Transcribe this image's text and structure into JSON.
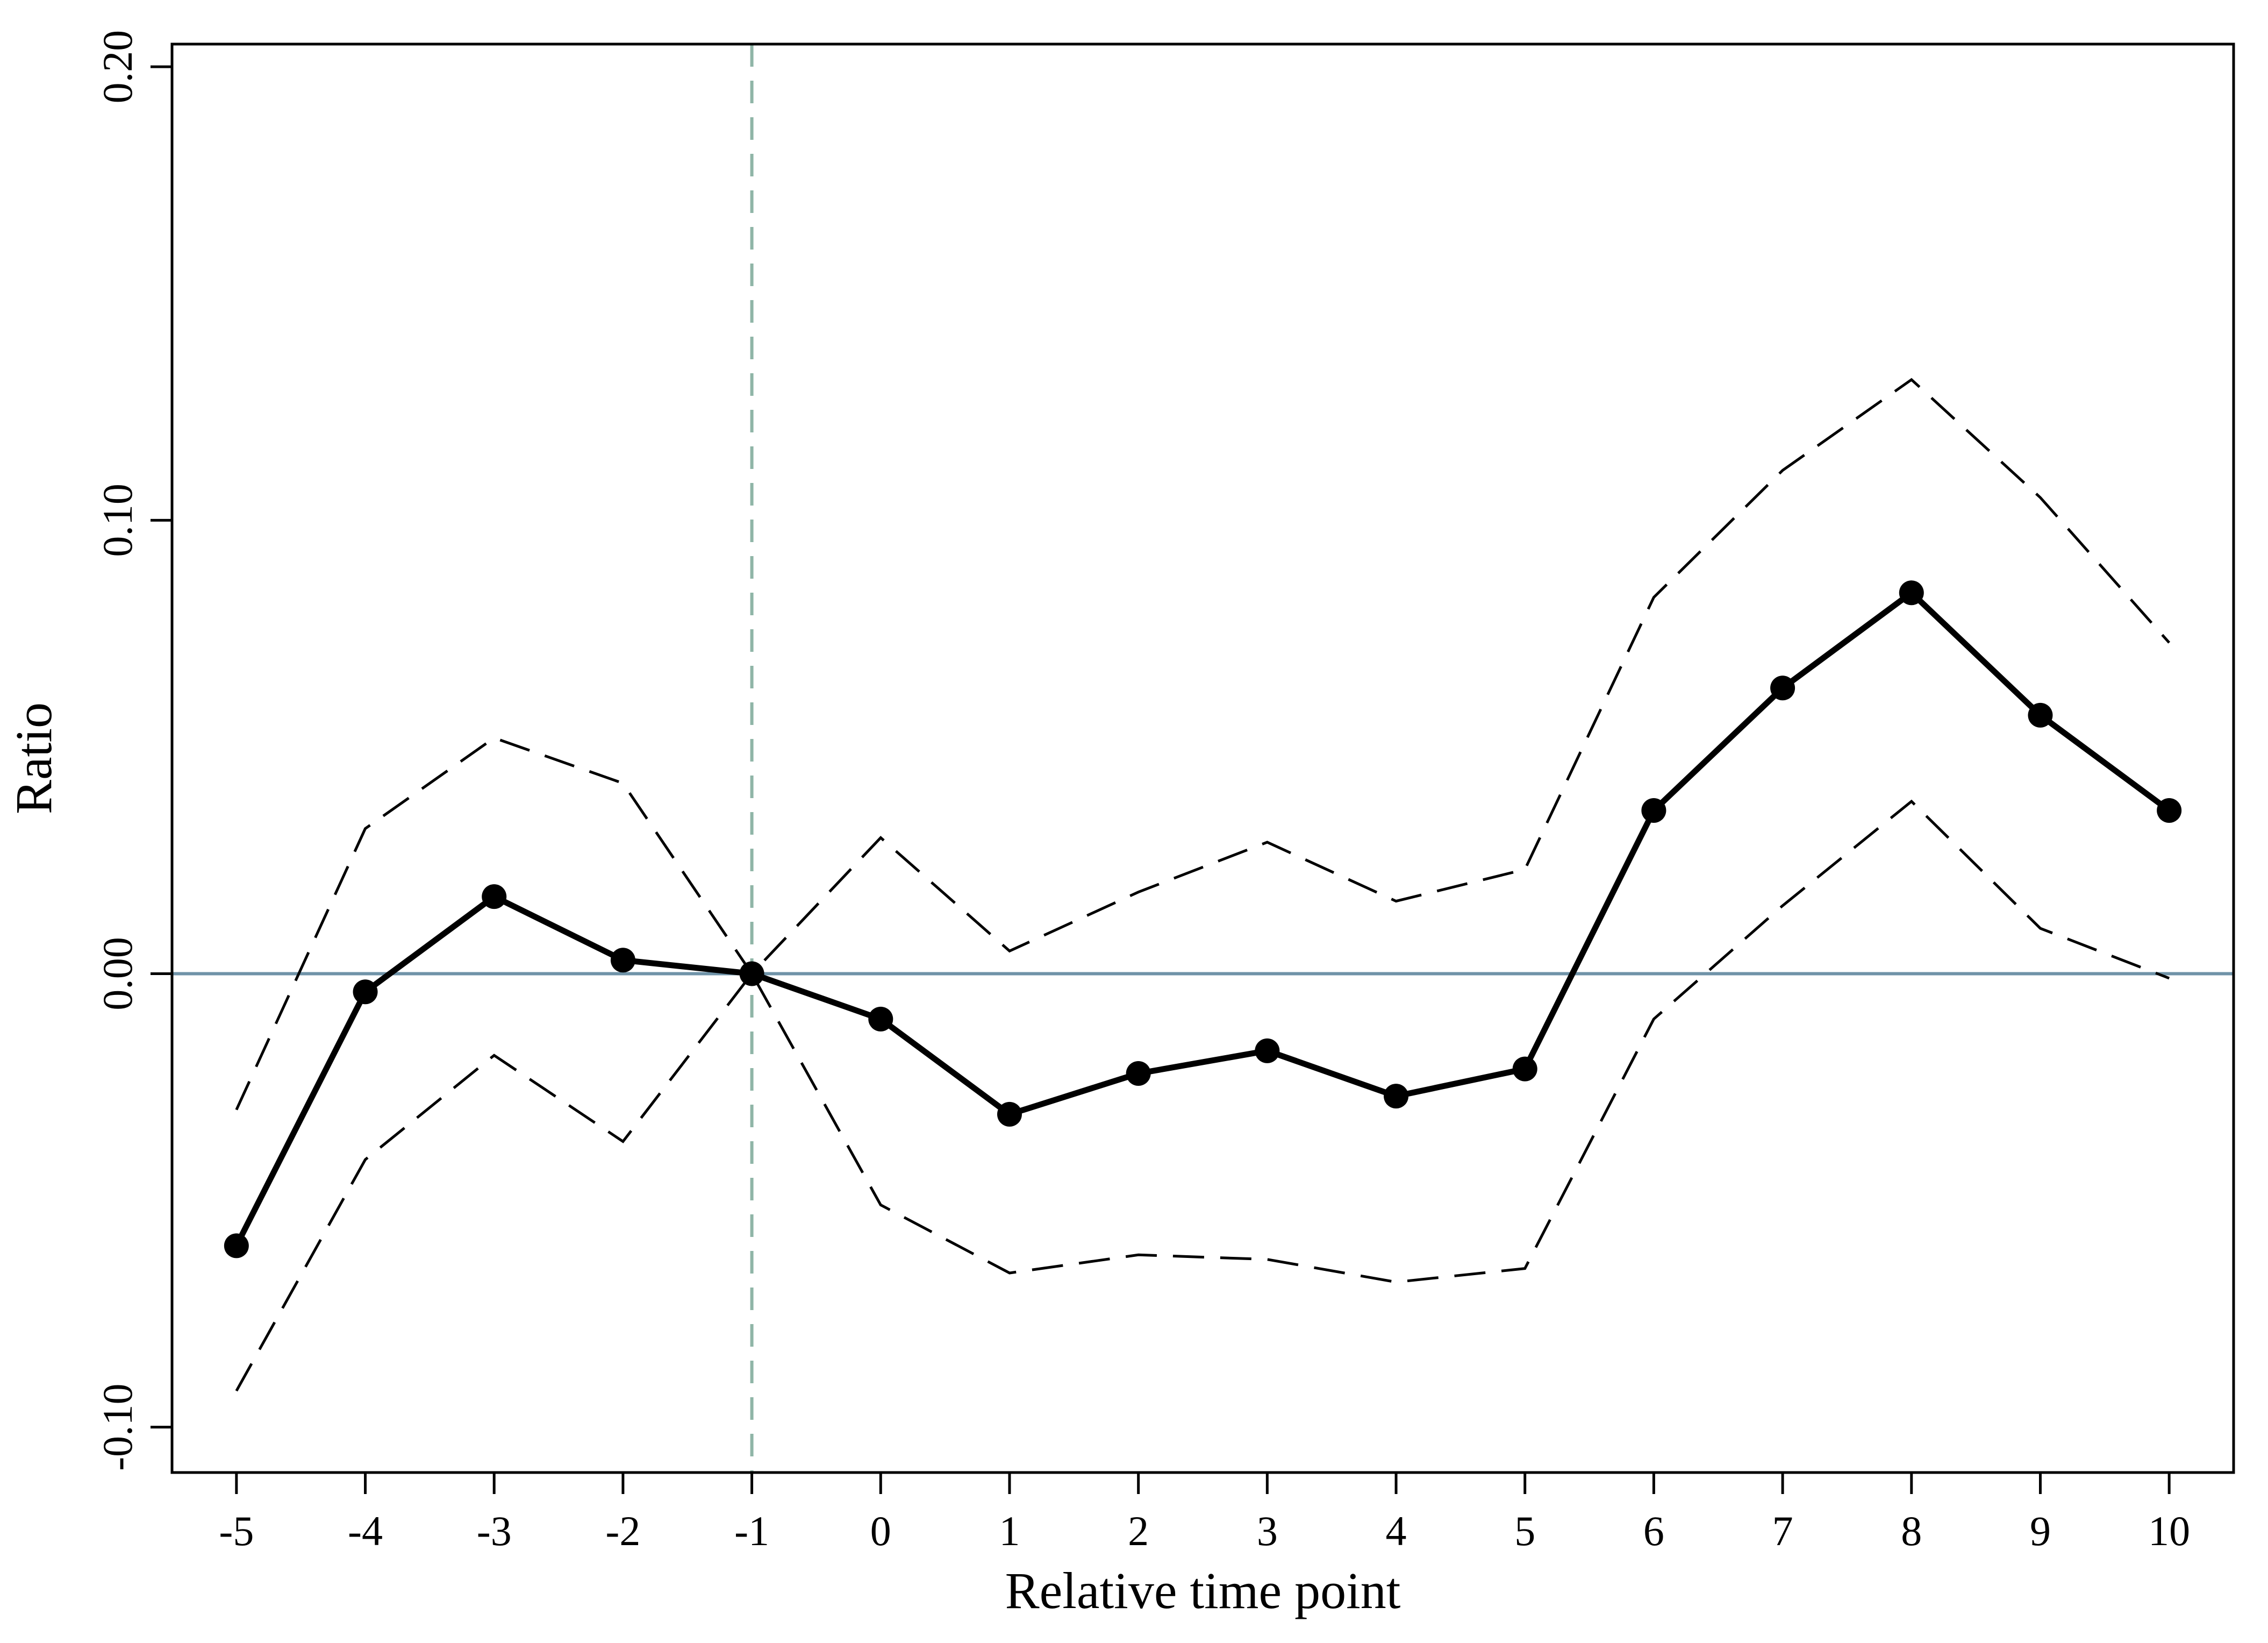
{
  "chart_data": {
    "type": "line",
    "title": "",
    "xlabel": "Relative time point",
    "ylabel": "Ratio",
    "x": [
      -5,
      -4,
      -3,
      -2,
      -1,
      0,
      1,
      2,
      3,
      4,
      5,
      6,
      7,
      8,
      9,
      10
    ],
    "xlim": [
      -5.5,
      10.5
    ],
    "ylim": [
      -0.11,
      0.205
    ],
    "x_ticks": [
      "-5",
      "-4",
      "-3",
      "-2",
      "-1",
      "0",
      "1",
      "2",
      "3",
      "4",
      "5",
      "6",
      "7",
      "8",
      "9",
      "10"
    ],
    "y_ticks": [
      {
        "value": -0.1,
        "label": "-0.10"
      },
      {
        "value": 0.0,
        "label": "0.00"
      },
      {
        "value": 0.1,
        "label": "0.10"
      },
      {
        "value": 0.2,
        "label": "0.20"
      }
    ],
    "grid": false,
    "legend": "none",
    "series": [
      {
        "role": "estimate",
        "style": "solid-with-markers",
        "color": "#000000",
        "values": [
          -0.06,
          -0.004,
          0.017,
          0.003,
          0.0,
          -0.01,
          -0.031,
          -0.022,
          -0.017,
          -0.027,
          -0.021,
          0.036,
          0.063,
          0.084,
          0.057,
          0.036
        ]
      },
      {
        "role": "upper-bound",
        "style": "dashed",
        "color": "#000000",
        "values": [
          -0.03,
          0.032,
          0.052,
          0.042,
          0.0,
          0.03,
          0.005,
          0.018,
          0.029,
          0.016,
          0.023,
          0.083,
          0.111,
          0.131,
          0.105,
          0.073
        ]
      },
      {
        "role": "lower-bound",
        "style": "dashed",
        "color": "#000000",
        "values": [
          -0.092,
          -0.041,
          -0.018,
          -0.037,
          0.0,
          -0.051,
          -0.066,
          -0.062,
          -0.063,
          -0.068,
          -0.065,
          -0.01,
          0.015,
          0.038,
          0.01,
          -0.001
        ]
      }
    ],
    "reference_lines": [
      {
        "orientation": "horizontal",
        "value": 0.0,
        "style": "solid",
        "color": "#6f93a8"
      },
      {
        "orientation": "vertical",
        "value": -1,
        "style": "dashed",
        "color": "#8fb5a7"
      }
    ]
  }
}
